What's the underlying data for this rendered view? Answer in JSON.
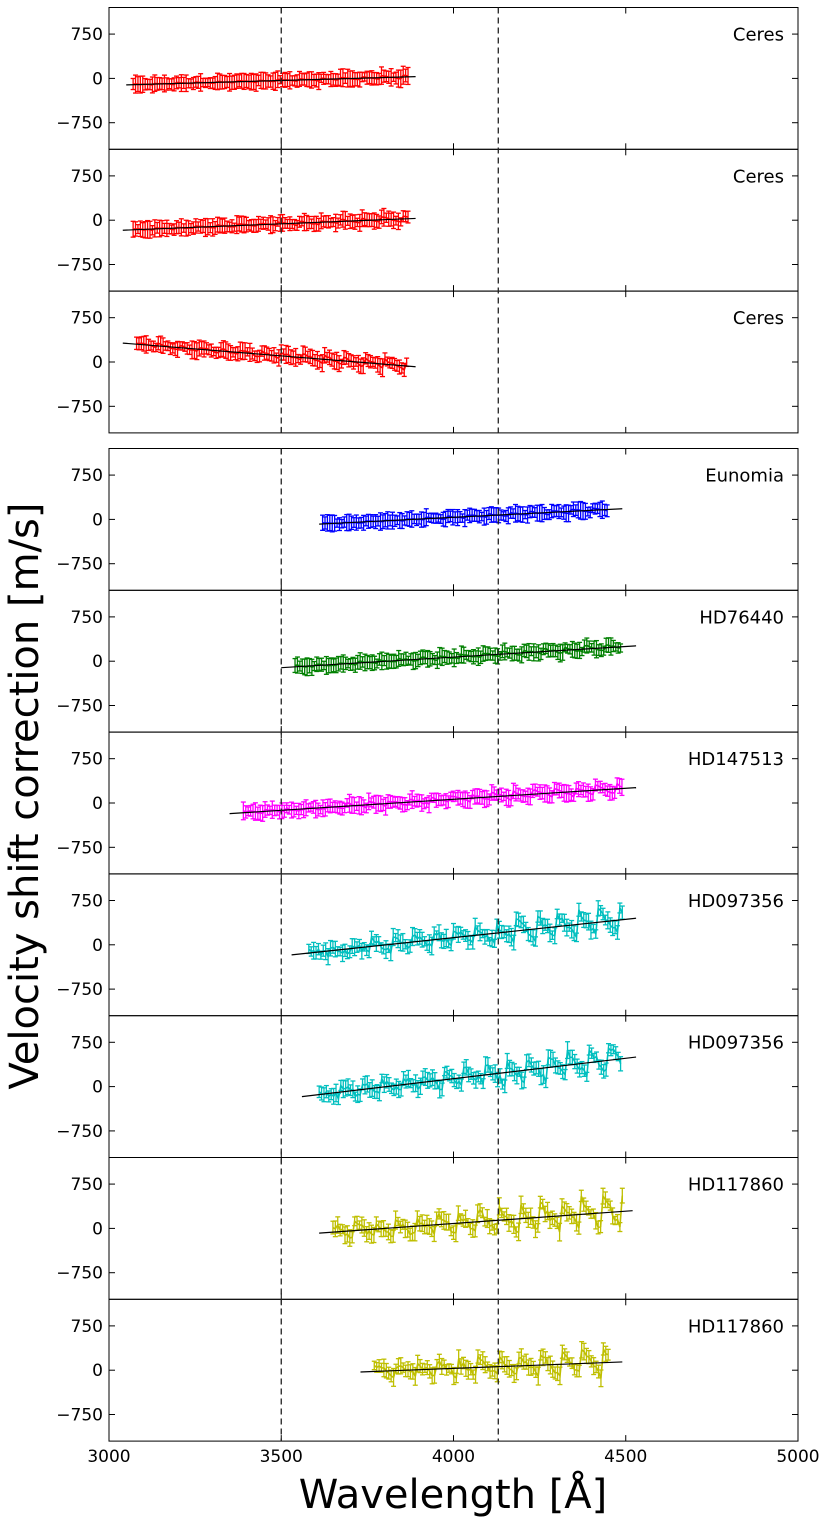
{
  "chart_data": {
    "type": "line",
    "xlabel": "Wavelength [Å]",
    "ylabel": "Velocity shift correction [m/s]",
    "xlim": [
      3000,
      5000
    ],
    "xticks": [
      3000,
      3500,
      4000,
      4500,
      5000
    ],
    "ylim": [
      -1200,
      1200
    ],
    "yticks": [
      750,
      0,
      -750
    ],
    "ytick_labels": [
      "750",
      "0",
      "−750"
    ],
    "vlines": [
      3500,
      4130
    ],
    "groups": [
      {
        "name": "top",
        "panels": 3
      },
      {
        "name": "bottom",
        "panels": 7
      }
    ],
    "panels": [
      {
        "label": "Ceres",
        "color": "#ff0000",
        "xrange": [
          3070,
          3870
        ],
        "fit": {
          "x0": 3050,
          "x1": 3890,
          "y0": -110,
          "y1": 30
        },
        "scatter": 40
      },
      {
        "label": "Ceres",
        "color": "#ff0000",
        "xrange": [
          3070,
          3870
        ],
        "fit": {
          "x0": 3040,
          "x1": 3890,
          "y0": -170,
          "y1": 30
        },
        "scatter": 60
      },
      {
        "label": "Ceres",
        "color": "#ff0000",
        "xrange": [
          3080,
          3870
        ],
        "fit": {
          "x0": 3040,
          "x1": 3890,
          "y0": 320,
          "y1": -80
        },
        "scatter": 110
      },
      {
        "label": "Eunomia",
        "color": "#0000ff",
        "xrange": [
          3620,
          4450
        ],
        "fit": {
          "x0": 3610,
          "x1": 4490,
          "y0": -80,
          "y1": 180
        },
        "scatter": 50
      },
      {
        "label": "HD76440",
        "color": "#008000",
        "xrange": [
          3540,
          4490
        ],
        "fit": {
          "x0": 3500,
          "x1": 4530,
          "y0": -110,
          "y1": 260
        },
        "scatter": 80
      },
      {
        "label": "HD147513",
        "color": "#ff00ff",
        "xrange": [
          3390,
          4490
        ],
        "fit": {
          "x0": 3350,
          "x1": 4530,
          "y0": -180,
          "y1": 260
        },
        "scatter": 110
      },
      {
        "label": "HD097356",
        "color": "#00bfbf",
        "xrange": [
          3580,
          4490
        ],
        "fit": {
          "x0": 3530,
          "x1": 4530,
          "y0": -170,
          "y1": 450
        },
        "scatter": 320
      },
      {
        "label": "HD097356",
        "color": "#00bfbf",
        "xrange": [
          3610,
          4490
        ],
        "fit": {
          "x0": 3560,
          "x1": 4530,
          "y0": -170,
          "y1": 500
        },
        "scatter": 330
      },
      {
        "label": "HD117860",
        "color": "#bfbf00",
        "xrange": [
          3650,
          4490
        ],
        "fit": {
          "x0": 3610,
          "x1": 4520,
          "y0": -80,
          "y1": 300
        },
        "scatter": 380
      },
      {
        "label": "HD117860",
        "color": "#bfbf00",
        "xrange": [
          3770,
          4450
        ],
        "fit": {
          "x0": 3730,
          "x1": 4490,
          "y0": -30,
          "y1": 140
        },
        "scatter": 300
      }
    ]
  }
}
